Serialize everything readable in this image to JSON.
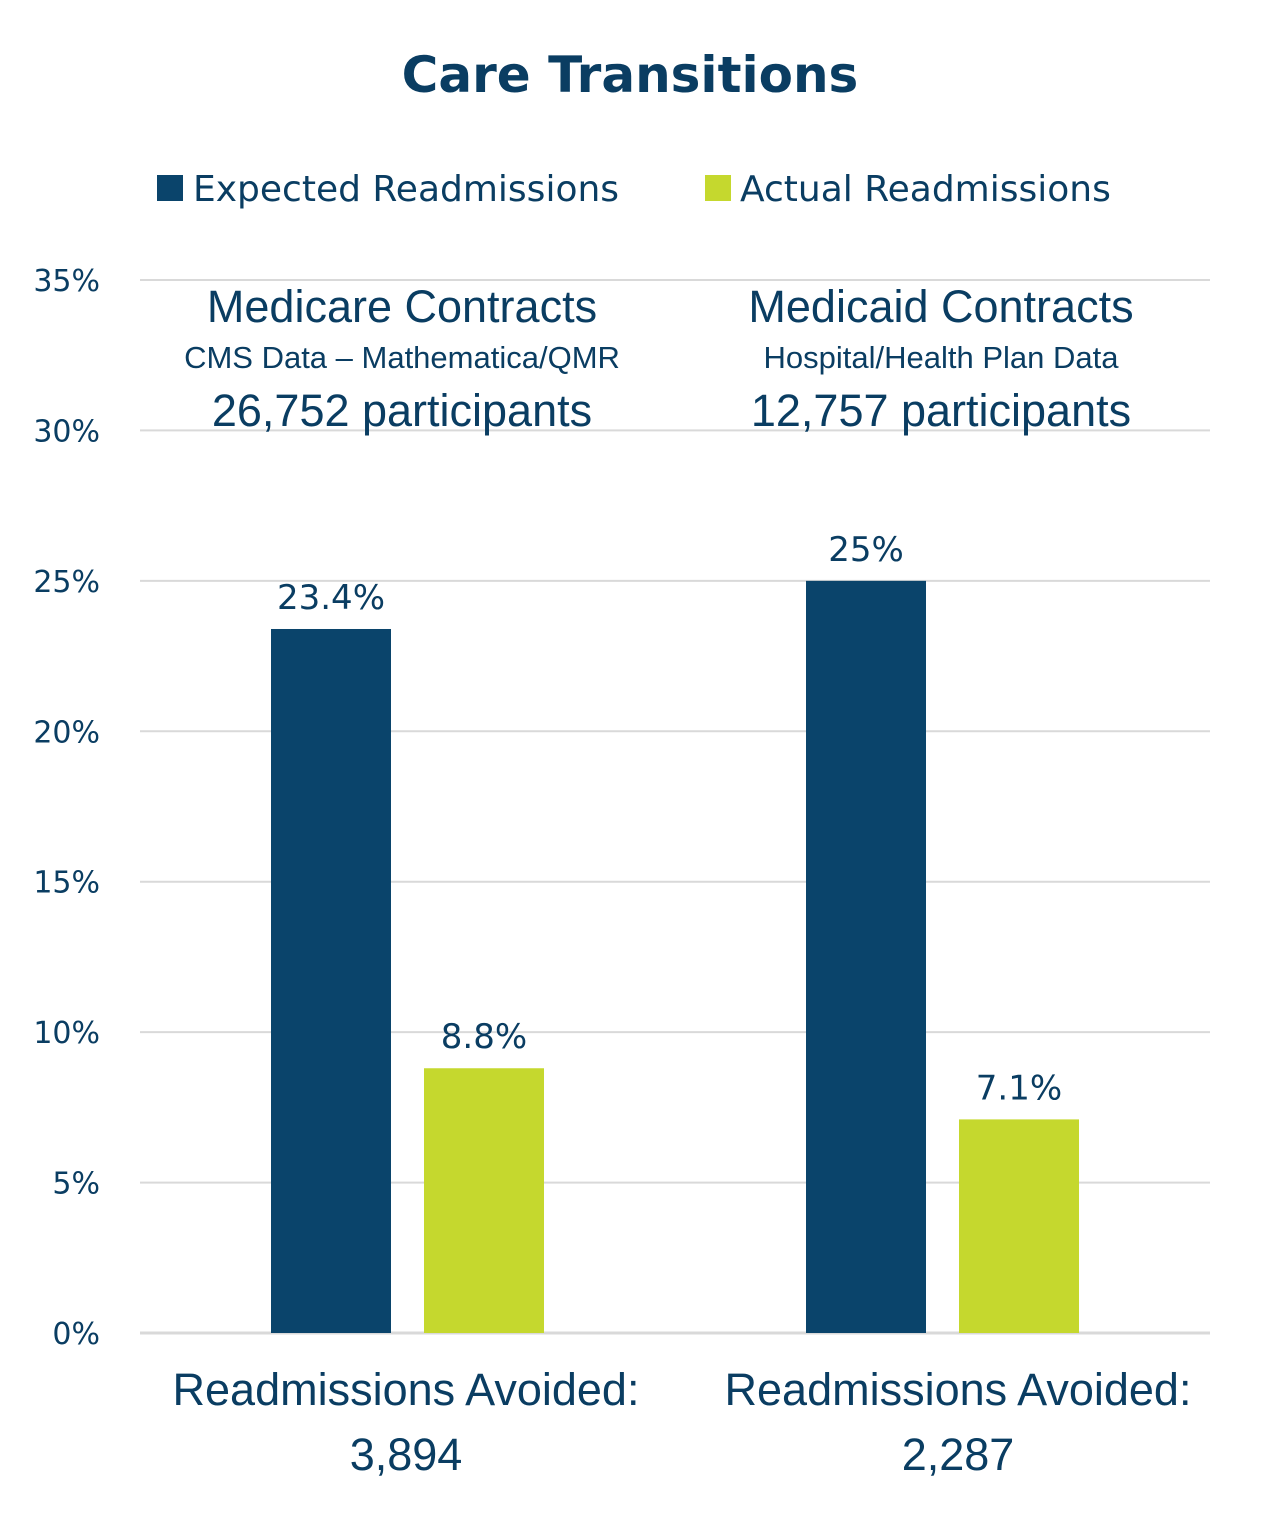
{
  "chart_data": {
    "type": "bar",
    "title": "Care Transitions",
    "categories": [
      "Medicare Contracts",
      "Medicaid Contracts"
    ],
    "series": [
      {
        "name": "Expected Readmissions",
        "values": [
          23.4,
          25
        ],
        "labels": [
          "23.4%",
          "25%"
        ],
        "color": "#0a446b"
      },
      {
        "name": "Actual Readmissions",
        "values": [
          8.8,
          7.1
        ],
        "labels": [
          "8.8%",
          "7.1%"
        ],
        "color": "#c5d82e"
      }
    ],
    "ylim": [
      0,
      35
    ],
    "yticks": [
      0,
      5,
      10,
      15,
      20,
      25,
      30,
      35
    ],
    "ytick_labels": [
      "0%",
      "5%",
      "10%",
      "15%",
      "20%",
      "25%",
      "30%",
      "35%"
    ],
    "grid": true,
    "legend_position": "top",
    "groups": [
      {
        "title": "Medicare Contracts",
        "subtitle": "CMS Data – Mathematica/QMR",
        "participants": "26,752 participants",
        "avoided_label": "Readmissions Avoided:",
        "avoided_value": "3,894"
      },
      {
        "title": "Medicaid Contracts",
        "subtitle": "Hospital/Health Plan Data",
        "participants": "12,757 participants",
        "avoided_label": "Readmissions Avoided:",
        "avoided_value": "2,287"
      }
    ]
  },
  "colors": {
    "text": "#0a3d62",
    "grid": "#d9d9d9",
    "expected": "#0a446b",
    "actual": "#c5d82e"
  }
}
